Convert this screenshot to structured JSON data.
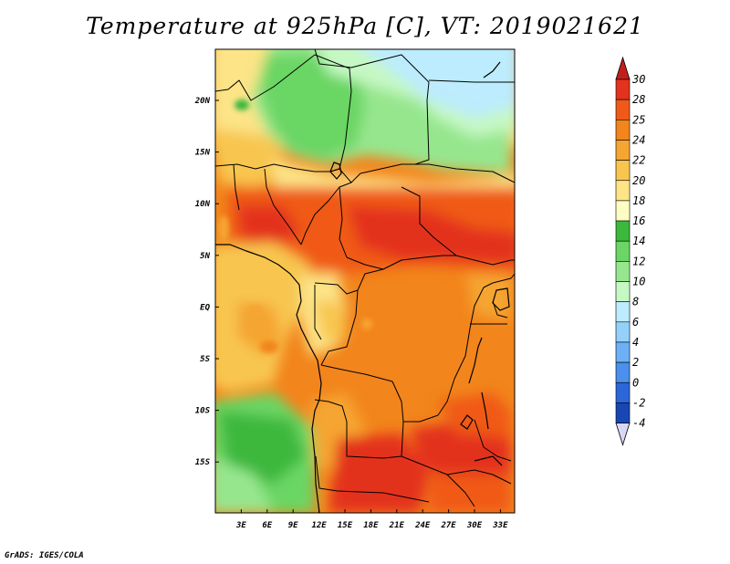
{
  "title": "Temperature at 925hPa [C], VT: 2019021621",
  "credit": "GrADS: IGES/COLA",
  "map": {
    "lon_labels": [
      "3E",
      "6E",
      "9E",
      "12E",
      "15E",
      "18E",
      "21E",
      "24E",
      "27E",
      "30E",
      "33E"
    ],
    "lat_labels": [
      "20N",
      "15N",
      "10N",
      "5N",
      "EQ",
      "5S",
      "10S",
      "15S"
    ],
    "variable": "Temperature at 925hPa",
    "units": "C"
  },
  "colorbar": {
    "labels": [
      "30",
      "28",
      "25",
      "24",
      "22",
      "20",
      "18",
      "16",
      "14",
      "12",
      "10",
      "8",
      "6",
      "4",
      "2",
      "0",
      "-2",
      "-4"
    ],
    "colors": [
      "#e3321e",
      "#f05a19",
      "#f2851c",
      "#f5a532",
      "#f8c650",
      "#fce487",
      "#fefdc4",
      "#3cb83c",
      "#6bd664",
      "#96e68e",
      "#c6f8c4",
      "#bcecfd",
      "#93d1fb",
      "#6cb1f5",
      "#4a90ec",
      "#2b67d8",
      "#1847b5",
      "#0f2485"
    ],
    "top_color": "#c31f1a",
    "bottom_color": "#d8d8f5"
  }
}
